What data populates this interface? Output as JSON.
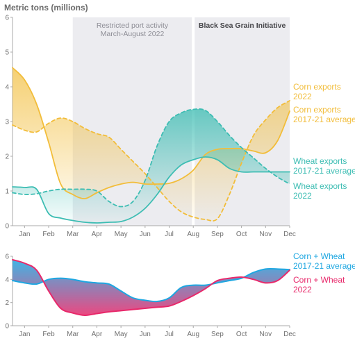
{
  "chart_data": [
    {
      "type": "line",
      "ylabel": "Metric tons (millions)",
      "ylim": [
        0,
        6
      ],
      "yticks": [
        0,
        1,
        2,
        3,
        4,
        5,
        6
      ],
      "months": [
        "Jan",
        "Feb",
        "Mar",
        "Apr",
        "May",
        "Jun",
        "Jul",
        "Aug",
        "Sep",
        "Oct",
        "Nov",
        "Dec"
      ],
      "shaded_regions": [
        {
          "label_lines": [
            "Restricted port activity",
            "March-August 2022"
          ],
          "start_month": 3,
          "end_month": 8
        },
        {
          "label_lines": [
            "Black Sea Grain Initiative"
          ],
          "start_month": 8,
          "end_month": 12
        }
      ],
      "series": [
        {
          "name": "Corn exports 2022",
          "label_lines": [
            "Corn exports",
            "2022"
          ],
          "color": "#f2bd3a",
          "dashed": false,
          "x": [
            0.5,
            1.0,
            1.5,
            2.0,
            2.5,
            3.0,
            3.5,
            4.0,
            4.5,
            5.0,
            5.5,
            6.0,
            6.5,
            7.0,
            7.5,
            8.0,
            8.5,
            9.0,
            9.5,
            10.0,
            10.5,
            11.0,
            11.5,
            12.0
          ],
          "y": [
            4.55,
            4.2,
            3.5,
            2.4,
            1.2,
            0.9,
            0.78,
            0.95,
            1.1,
            1.2,
            1.25,
            1.2,
            1.2,
            1.22,
            1.35,
            1.6,
            2.05,
            2.2,
            2.22,
            2.22,
            2.15,
            2.1,
            2.45,
            3.3
          ]
        },
        {
          "name": "Corn exports 2017-21 average",
          "label_lines": [
            "Corn exports",
            "2017-21 average"
          ],
          "color": "#f2bd3a",
          "dashed": true,
          "x": [
            0.5,
            1.0,
            1.5,
            2.0,
            2.5,
            3.0,
            3.5,
            4.0,
            4.5,
            5.0,
            5.5,
            6.0,
            6.5,
            7.0,
            7.5,
            8.0,
            8.5,
            9.0,
            9.5,
            10.0,
            10.5,
            11.0,
            11.5,
            12.0
          ],
          "y": [
            2.9,
            2.75,
            2.7,
            2.95,
            3.1,
            3.0,
            2.8,
            2.65,
            2.55,
            2.2,
            1.85,
            1.5,
            1.1,
            0.7,
            0.4,
            0.25,
            0.18,
            0.2,
            0.9,
            1.8,
            2.6,
            3.05,
            3.4,
            3.6
          ]
        },
        {
          "name": "Wheat exports 2017-21 average",
          "label_lines": [
            "Wheat exports",
            "2017-21 average"
          ],
          "color": "#3dbdb3",
          "dashed": true,
          "x": [
            0.5,
            1.0,
            1.5,
            2.0,
            2.5,
            3.0,
            3.5,
            4.0,
            4.5,
            5.0,
            5.5,
            6.0,
            6.5,
            7.0,
            7.5,
            8.0,
            8.5,
            9.0,
            9.5,
            10.0,
            10.5,
            11.0,
            11.5,
            12.0
          ],
          "y": [
            0.95,
            0.9,
            0.92,
            1.0,
            1.05,
            1.05,
            1.05,
            1.0,
            0.7,
            0.55,
            0.7,
            1.3,
            2.3,
            3.0,
            3.25,
            3.35,
            3.32,
            3.0,
            2.6,
            2.25,
            1.95,
            1.65,
            1.4,
            1.2
          ]
        },
        {
          "name": "Wheat exports 2022",
          "label_lines": [
            "Wheat exports",
            "2022"
          ],
          "color": "#3dbdb3",
          "dashed": false,
          "x": [
            0.5,
            1.0,
            1.5,
            2.0,
            2.5,
            3.0,
            3.5,
            4.0,
            4.5,
            5.0,
            5.5,
            6.0,
            6.5,
            7.0,
            7.5,
            8.0,
            8.5,
            9.0,
            9.5,
            10.0,
            10.5,
            11.0,
            11.5,
            12.0
          ],
          "y": [
            1.12,
            1.1,
            1.05,
            0.35,
            0.22,
            0.15,
            0.1,
            0.08,
            0.1,
            0.12,
            0.25,
            0.5,
            0.9,
            1.4,
            1.75,
            1.9,
            1.98,
            1.9,
            1.65,
            1.55,
            1.55,
            1.55,
            1.55,
            1.55
          ]
        }
      ]
    },
    {
      "type": "line",
      "ylim": [
        0,
        6
      ],
      "yticks": [
        0,
        2,
        4,
        6
      ],
      "months": [
        "Jan",
        "Feb",
        "Mar",
        "Apr",
        "May",
        "Jun",
        "Jul",
        "Aug",
        "Sep",
        "Oct",
        "Nov",
        "Dec"
      ],
      "series": [
        {
          "name": "Corn + Wheat 2017-21 average",
          "label_lines": [
            "Corn + Wheat",
            "2017-21 average"
          ],
          "color": "#1ea7e1",
          "dashed": false,
          "x": [
            0.5,
            1.0,
            1.5,
            2.0,
            2.5,
            3.0,
            3.5,
            4.0,
            4.5,
            5.0,
            5.5,
            6.0,
            6.5,
            7.0,
            7.5,
            8.0,
            8.5,
            9.0,
            9.5,
            10.0,
            10.5,
            11.0,
            11.5,
            12.0
          ],
          "y": [
            3.9,
            3.7,
            3.6,
            4.0,
            4.1,
            4.0,
            3.8,
            3.7,
            3.6,
            3.0,
            2.4,
            2.2,
            2.1,
            2.4,
            3.3,
            3.5,
            3.5,
            3.7,
            3.9,
            4.1,
            4.6,
            4.9,
            4.9,
            4.85
          ]
        },
        {
          "name": "Corn + Wheat 2022",
          "label_lines": [
            "Corn + Wheat",
            "2022"
          ],
          "color": "#e8286a",
          "dashed": false,
          "x": [
            0.5,
            1.0,
            1.5,
            2.0,
            2.5,
            3.0,
            3.5,
            4.0,
            4.5,
            5.0,
            5.5,
            6.0,
            6.5,
            7.0,
            7.5,
            8.0,
            8.5,
            9.0,
            9.5,
            10.0,
            10.5,
            11.0,
            11.5,
            12.0
          ],
          "y": [
            5.7,
            5.4,
            4.8,
            3.0,
            1.5,
            1.1,
            0.9,
            1.05,
            1.2,
            1.3,
            1.4,
            1.5,
            1.6,
            1.7,
            2.1,
            2.6,
            3.2,
            3.9,
            4.1,
            4.2,
            4.0,
            3.7,
            3.9,
            4.8
          ]
        }
      ]
    }
  ]
}
